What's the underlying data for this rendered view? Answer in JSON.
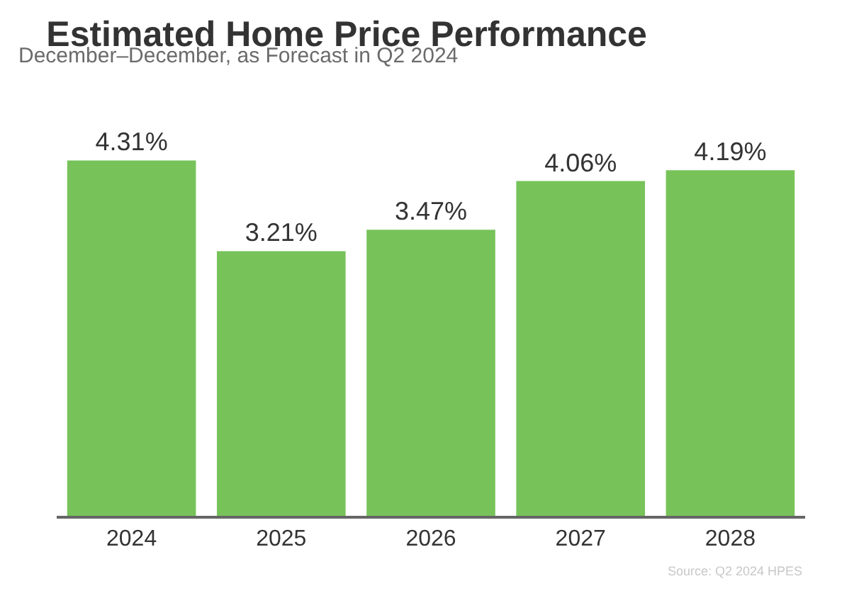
{
  "chart_data": {
    "type": "bar",
    "title": "Estimated Home Price Performance",
    "subtitle": "December–December, as Forecast in Q2 2024",
    "categories": [
      "2024",
      "2025",
      "2026",
      "2027",
      "2028"
    ],
    "values": [
      4.31,
      3.21,
      3.47,
      4.06,
      4.19
    ],
    "value_labels": [
      "4.31%",
      "3.21%",
      "3.47%",
      "4.06%",
      "4.19%"
    ],
    "color": "#77c35a",
    "annotations": [
      "Source: Q2 2024 HPES"
    ],
    "grid": false,
    "legend": false
  }
}
